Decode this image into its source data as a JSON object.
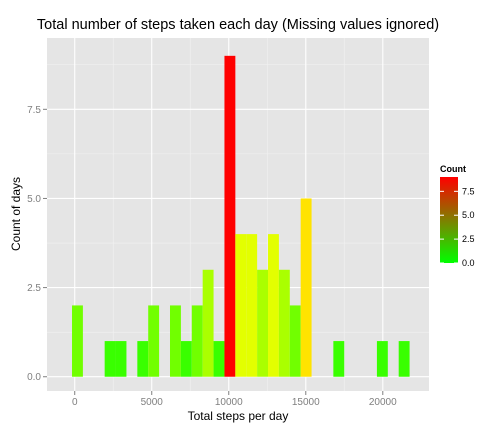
{
  "chart_data": {
    "type": "bar",
    "title": "Total number of steps taken each day (Missing values ignored)",
    "xlabel": "Total steps per day",
    "ylabel": "Count of days",
    "xlim": [
      -1800,
      23000
    ],
    "ylim": [
      -0.4,
      9.5
    ],
    "xticks": [
      0,
      5000,
      10000,
      15000,
      20000
    ],
    "xtick_labels": [
      "0",
      "5000",
      "10000",
      "15000",
      "20000"
    ],
    "yticks": [
      0,
      2.5,
      5,
      7.5
    ],
    "ytick_labels": [
      "0.0",
      "2.5",
      "5.0",
      "7.5"
    ],
    "bin_width": 707,
    "bins": [
      {
        "x": 177,
        "count": 2
      },
      {
        "x": 2297,
        "count": 1
      },
      {
        "x": 3004,
        "count": 1
      },
      {
        "x": 4418,
        "count": 1
      },
      {
        "x": 5125,
        "count": 2
      },
      {
        "x": 6539,
        "count": 2
      },
      {
        "x": 7246,
        "count": 1
      },
      {
        "x": 7953,
        "count": 2
      },
      {
        "x": 8660,
        "count": 3
      },
      {
        "x": 9367,
        "count": 1
      },
      {
        "x": 10074,
        "count": 9
      },
      {
        "x": 10781,
        "count": 4
      },
      {
        "x": 11488,
        "count": 4
      },
      {
        "x": 12195,
        "count": 3
      },
      {
        "x": 12902,
        "count": 4
      },
      {
        "x": 13609,
        "count": 3
      },
      {
        "x": 14316,
        "count": 2
      },
      {
        "x": 15023,
        "count": 5
      },
      {
        "x": 17144,
        "count": 1
      },
      {
        "x": 19972,
        "count": 1
      },
      {
        "x": 21386,
        "count": 1
      }
    ],
    "grid": true,
    "legend_position": "right",
    "legend": {
      "title": "Count",
      "breaks": [
        0,
        2.5,
        5,
        7.5
      ],
      "labels": [
        "0.0",
        "2.5",
        "5.0",
        "7.5"
      ],
      "limits": [
        0,
        9
      ],
      "low_color": "#00ff00",
      "high_color": "#ff0000"
    },
    "colors": {
      "panel_bg": "#e5e5e5",
      "grid_major": "#ffffff",
      "grid_minor": "#f2f2f2"
    }
  }
}
